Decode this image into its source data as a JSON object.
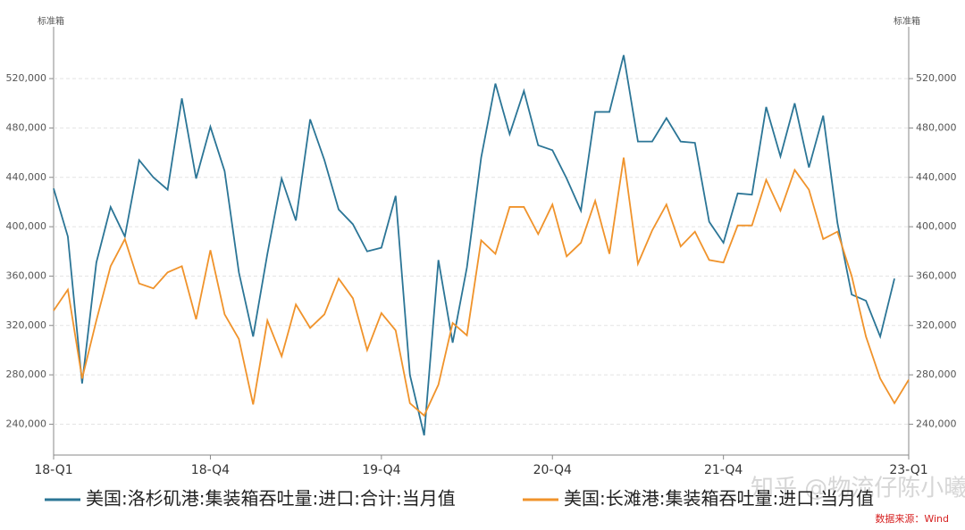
{
  "chart_data": {
    "type": "line",
    "y_unit": "标准箱",
    "y2_unit": "标准箱",
    "source": "数据来源：Wind",
    "watermark": "知乎 @物流仔陈小曦",
    "categories": [
      "18-Q1",
      null,
      null,
      null,
      null,
      null,
      null,
      null,
      null,
      null,
      null,
      "18-Q4",
      null,
      null,
      null,
      null,
      null,
      null,
      null,
      null,
      null,
      null,
      null,
      "19-Q4",
      null,
      null,
      null,
      null,
      null,
      null,
      null,
      null,
      null,
      null,
      null,
      "20-Q4",
      null,
      null,
      null,
      null,
      null,
      null,
      null,
      null,
      null,
      null,
      null,
      "21-Q4",
      null,
      null,
      null,
      null,
      null,
      null,
      null,
      null,
      null,
      null,
      null,
      null,
      "23-Q1"
    ],
    "series": [
      {
        "name": "美国:洛杉矶港:集装箱吞吐量:进口:合计:当月值",
        "color": "#2b7596",
        "values": [
          431000,
          392000,
          273000,
          371000,
          416000,
          392000,
          454000,
          440000,
          430000,
          504000,
          439000,
          481000,
          445000,
          363000,
          311000,
          378000,
          439000,
          405000,
          487000,
          454000,
          414000,
          402000,
          380000,
          383000,
          425000,
          280000,
          231000,
          373000,
          306000,
          367000,
          456000,
          516000,
          475000,
          510000,
          466000,
          462000,
          439000,
          413000,
          493000,
          493000,
          539000,
          469000,
          469000,
          488000,
          469000,
          468000,
          404000,
          387000,
          427000,
          426000,
          497000,
          457000,
          500000,
          448000,
          490000,
          403000,
          345000,
          340000,
          311000,
          358000,
          null
        ]
      },
      {
        "name": "美国:长滩港:集装箱吞吐量:进口:当月值",
        "color": "#f0932b",
        "axis": "y2",
        "values": [
          332000,
          349000,
          277000,
          324000,
          368000,
          390000,
          354000,
          350000,
          363000,
          368000,
          325000,
          381000,
          329000,
          309000,
          256000,
          324000,
          295000,
          337000,
          318000,
          329000,
          358000,
          342000,
          300000,
          330000,
          316000,
          257000,
          247000,
          272000,
          322000,
          312000,
          389000,
          378000,
          416000,
          416000,
          394000,
          418000,
          376000,
          387000,
          421000,
          378000,
          456000,
          370000,
          397000,
          418000,
          384000,
          396000,
          373000,
          371000,
          401000,
          401000,
          438000,
          413000,
          446000,
          430000,
          390000,
          396000,
          360000,
          311000,
          277000,
          257000,
          276000
        ]
      }
    ],
    "ylim": [
      215000,
      562000
    ],
    "yticks": [
      {
        "value": 240000,
        "label": "240,000"
      },
      {
        "value": 280000,
        "label": "280,000"
      },
      {
        "value": 320000,
        "label": "320,000"
      },
      {
        "value": 360000,
        "label": "360,000"
      },
      {
        "value": 400000,
        "label": "400,000"
      },
      {
        "value": 440000,
        "label": "440,000"
      },
      {
        "value": 480000,
        "label": "480,000"
      },
      {
        "value": 520000,
        "label": "520,000"
      }
    ],
    "y2lim": [
      215000,
      562000
    ],
    "y2ticks": [
      {
        "value": 240000,
        "label": "240,000"
      },
      {
        "value": 280000,
        "label": "280,000"
      },
      {
        "value": 320000,
        "label": "320,000"
      },
      {
        "value": 360000,
        "label": "360,000"
      },
      {
        "value": 400000,
        "label": "400,000"
      },
      {
        "value": 440000,
        "label": "440,000"
      },
      {
        "value": 480000,
        "label": "480,000"
      },
      {
        "value": 520000,
        "label": "520,000"
      }
    ],
    "grid": true
  }
}
